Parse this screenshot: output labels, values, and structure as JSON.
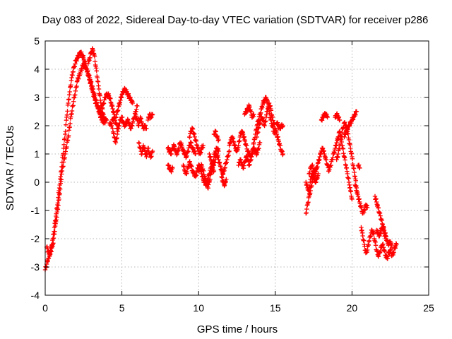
{
  "chart_data": {
    "type": "scatter",
    "title": "Day 083 of 2022, Sidereal Day-to-day VTEC variation (SDTVAR) for receiver p286",
    "xlabel": "GPS time / hours",
    "ylabel": "SDTVAR / TECUs",
    "xlim": [
      0,
      25
    ],
    "ylim": [
      -4,
      5
    ],
    "xticks": [
      0,
      5,
      10,
      15,
      20,
      25
    ],
    "yticks": [
      -4,
      -3,
      -2,
      -1,
      0,
      1,
      2,
      3,
      4,
      5
    ],
    "grid": true,
    "marker": "+",
    "color": "#ff0000",
    "segments": [
      {
        "x": [
          0.0,
          0.1,
          0.2,
          0.3,
          0.4,
          0.5,
          0.6,
          0.7,
          0.8,
          0.9,
          1.0,
          1.1,
          1.2,
          1.3,
          1.4,
          1.5,
          1.6,
          1.7,
          1.8,
          1.9,
          2.0,
          2.1,
          2.2,
          2.3,
          2.4,
          2.5,
          2.6,
          2.7,
          2.8,
          2.9,
          3.0,
          3.1,
          3.2,
          3.3,
          3.4,
          3.5,
          3.6,
          3.7,
          3.8,
          3.9,
          4.0
        ],
        "y": [
          -3.1,
          -2.9,
          -2.7,
          -2.5,
          -2.3,
          -2.0,
          -1.6,
          -1.2,
          -0.8,
          -0.3,
          0.2,
          0.7,
          1.2,
          1.7,
          2.3,
          2.8,
          3.2,
          3.6,
          3.9,
          4.1,
          4.3,
          4.4,
          4.5,
          4.6,
          4.5,
          4.4,
          4.2,
          4.0,
          3.8,
          3.6,
          3.4,
          3.2,
          3.0,
          2.8,
          2.7,
          2.6,
          2.5,
          2.4,
          2.3,
          2.2,
          2.2
        ]
      },
      {
        "x": [
          0.1,
          0.3,
          0.5,
          0.7,
          0.9,
          1.1,
          1.3,
          1.5,
          1.7,
          1.9,
          2.1,
          2.3,
          2.5,
          2.7,
          2.9,
          3.1,
          3.3,
          3.5,
          3.7,
          3.9
        ],
        "y": [
          -2.3,
          -2.6,
          -2.2,
          -1.4,
          -0.6,
          0.4,
          1.0,
          1.6,
          2.4,
          3.0,
          3.6,
          3.9,
          4.2,
          4.0,
          3.7,
          3.3,
          2.9,
          2.5,
          2.2,
          2.1
        ]
      },
      {
        "x": [
          2.8,
          2.9,
          3.0,
          3.1,
          3.2,
          3.3,
          3.4,
          3.5,
          3.6,
          3.7,
          3.8
        ],
        "y": [
          4.2,
          4.4,
          4.6,
          4.7,
          4.5,
          4.1,
          3.7,
          3.3,
          2.9,
          2.6,
          2.4
        ]
      },
      {
        "x": [
          3.7,
          3.8,
          3.9,
          4.0,
          4.1,
          4.2,
          4.3,
          4.4,
          4.5
        ],
        "y": [
          2.6,
          2.8,
          3.0,
          3.1,
          3.1,
          3.0,
          2.8,
          2.6,
          2.4
        ]
      },
      {
        "x": [
          4.2,
          4.3,
          4.4,
          4.5,
          4.6,
          4.7,
          4.8,
          4.9,
          5.0,
          5.1,
          5.2,
          5.3,
          5.4,
          5.5,
          5.6,
          5.7,
          5.8,
          5.9,
          6.0
        ],
        "y": [
          2.1,
          2.0,
          2.2,
          2.3,
          2.1,
          1.9,
          2.0,
          2.2,
          2.3,
          2.1,
          2.0,
          2.1,
          2.2,
          2.0,
          1.9,
          2.1,
          2.3,
          2.5,
          2.7
        ]
      },
      {
        "x": [
          4.6,
          4.7,
          4.8,
          4.9,
          5.0,
          5.1,
          5.2,
          5.3,
          5.4,
          5.5,
          5.6,
          5.7
        ],
        "y": [
          2.3,
          2.5,
          2.7,
          2.9,
          3.1,
          3.2,
          3.3,
          3.2,
          3.1,
          3.0,
          2.9,
          2.8
        ]
      },
      {
        "x": [
          4.4,
          4.5,
          4.6,
          4.7,
          4.8
        ],
        "y": [
          1.9,
          1.6,
          1.4,
          1.7,
          2.0
        ]
      },
      {
        "x": [
          5.9,
          6.0,
          6.1,
          6.2,
          6.3,
          6.4,
          6.5,
          6.6
        ],
        "y": [
          2.4,
          2.2,
          2.0,
          2.3,
          2.1,
          1.9,
          2.0,
          1.9
        ]
      },
      {
        "x": [
          6.1,
          6.2,
          6.3,
          6.4,
          6.5,
          6.6,
          6.7,
          6.8,
          6.9,
          7.0
        ],
        "y": [
          1.4,
          1.2,
          1.0,
          1.3,
          1.1,
          0.9,
          1.2,
          1.0,
          0.9,
          1.1
        ]
      },
      {
        "x": [
          6.7,
          6.8,
          6.9,
          7.0
        ],
        "y": [
          2.2,
          2.4,
          2.3,
          2.4
        ]
      },
      {
        "x": [
          8.0,
          8.1,
          8.2,
          8.3,
          8.4,
          8.5,
          8.6,
          8.7,
          8.8,
          8.9,
          9.0,
          9.1,
          9.2,
          9.3,
          9.4,
          9.5,
          9.6,
          9.7,
          9.8
        ],
        "y": [
          1.2,
          1.1,
          1.0,
          1.2,
          1.3,
          1.1,
          1.0,
          1.2,
          1.4,
          1.3,
          1.1,
          1.0,
          0.9,
          1.1,
          1.3,
          1.4,
          1.2,
          1.1,
          1.0
        ]
      },
      {
        "x": [
          8.0,
          8.1,
          8.2,
          8.3
        ],
        "y": [
          0.6,
          0.5,
          0.4,
          0.5
        ]
      },
      {
        "x": [
          9.0,
          9.1,
          9.2,
          9.3,
          9.4,
          9.5,
          9.6,
          9.7,
          9.8,
          9.9,
          10.0,
          10.1,
          10.2,
          10.3,
          10.4,
          10.5,
          10.6,
          10.7,
          10.8,
          10.9,
          11.0,
          11.1,
          11.2,
          11.3,
          11.4,
          11.5,
          11.6,
          11.7,
          11.8,
          11.9,
          12.0
        ],
        "y": [
          0.6,
          0.4,
          0.3,
          0.5,
          0.7,
          0.6,
          0.4,
          0.3,
          0.2,
          0.4,
          0.6,
          0.5,
          0.3,
          0.1,
          0.0,
          -0.1,
          0.1,
          0.3,
          0.5,
          0.7,
          0.6,
          0.8,
          1.0,
          0.8,
          0.6,
          0.4,
          0.3,
          0.5,
          0.7,
          0.9,
          1.1
        ]
      },
      {
        "x": [
          10.0,
          10.1,
          10.2,
          10.3,
          10.4,
          10.5,
          10.6,
          10.7,
          10.8,
          10.9,
          11.0
        ],
        "y": [
          0.4,
          0.5,
          0.6,
          0.4,
          0.2,
          0.0,
          -0.2,
          0.0,
          0.3,
          0.5,
          0.4
        ]
      },
      {
        "x": [
          9.4,
          9.5,
          9.6,
          9.7,
          9.8,
          9.9,
          10.0,
          10.1,
          10.2,
          10.3
        ],
        "y": [
          1.6,
          1.8,
          1.9,
          1.7,
          1.5,
          1.3,
          1.1,
          1.0,
          1.2,
          1.3
        ]
      },
      {
        "x": [
          10.7,
          10.8,
          10.9,
          11.0,
          11.1,
          11.2,
          11.3
        ],
        "y": [
          1.0,
          0.8,
          0.6,
          0.9,
          1.1,
          1.2,
          1.1
        ]
      },
      {
        "x": [
          11.0,
          11.1,
          11.2,
          11.3
        ],
        "y": [
          1.7,
          1.8,
          1.6,
          1.5
        ]
      },
      {
        "x": [
          11.5,
          11.6,
          11.7,
          11.8
        ],
        "y": [
          0.2,
          0.0,
          -0.1,
          0.1
        ]
      },
      {
        "x": [
          12.0,
          12.1,
          12.2,
          12.3,
          12.4,
          12.5,
          12.6,
          12.7,
          12.8,
          12.9,
          13.0,
          13.1,
          13.2,
          13.3,
          13.4,
          13.5,
          13.6,
          13.7,
          13.8,
          13.9,
          14.0,
          14.1,
          14.2,
          14.3,
          14.4,
          14.5,
          14.6,
          14.7,
          14.8,
          14.9,
          15.0
        ],
        "y": [
          1.3,
          1.5,
          1.6,
          1.4,
          1.2,
          1.1,
          1.3,
          1.6,
          1.8,
          1.7,
          1.5,
          1.3,
          1.1,
          1.0,
          0.9,
          1.1,
          1.4,
          1.7,
          2.0,
          2.2,
          2.4,
          2.6,
          2.8,
          2.9,
          3.0,
          2.8,
          2.5,
          2.2,
          2.0,
          1.8,
          1.7
        ]
      },
      {
        "x": [
          12.6,
          12.7,
          12.8,
          12.9,
          13.0,
          13.1,
          13.2,
          13.3,
          13.4,
          13.5,
          13.6,
          13.7,
          13.8,
          13.9,
          14.0
        ],
        "y": [
          0.6,
          0.8,
          0.7,
          0.5,
          0.7,
          0.9,
          0.8,
          0.6,
          0.8,
          1.0,
          1.2,
          1.1,
          1.0,
          1.2,
          1.4
        ]
      },
      {
        "x": [
          13.8,
          13.9,
          14.0,
          14.1,
          14.2,
          14.3,
          14.4,
          14.5,
          14.6,
          14.7,
          14.8,
          14.9,
          15.0,
          15.1,
          15.2,
          15.3,
          15.4,
          15.5
        ],
        "y": [
          1.6,
          1.9,
          2.1,
          2.3,
          2.2,
          2.0,
          2.3,
          2.6,
          2.8,
          2.6,
          2.3,
          2.1,
          1.9,
          1.7,
          1.5,
          1.3,
          1.1,
          1.0
        ]
      },
      {
        "x": [
          13.0,
          13.1,
          13.2,
          13.3,
          13.4,
          13.5,
          13.6
        ],
        "y": [
          2.4,
          2.5,
          2.6,
          2.7,
          2.5,
          2.3,
          2.4
        ]
      },
      {
        "x": [
          15.1,
          15.2,
          15.3,
          15.4,
          15.5
        ],
        "y": [
          2.1,
          2.0,
          1.9,
          2.0,
          2.0
        ]
      },
      {
        "x": [
          17.0,
          17.1,
          17.2,
          17.3,
          17.4,
          17.5,
          17.6,
          17.7,
          17.8,
          17.9,
          18.0,
          18.1,
          18.2,
          18.3,
          18.4,
          18.5,
          18.6,
          18.7,
          18.8,
          18.9,
          19.0,
          19.1,
          19.2,
          19.3,
          19.4,
          19.5,
          19.6,
          19.7,
          19.8,
          19.9,
          20.0
        ],
        "y": [
          0.0,
          -0.2,
          -0.3,
          0.1,
          0.3,
          0.2,
          0.4,
          0.5,
          0.7,
          0.9,
          1.1,
          1.2,
          1.0,
          0.8,
          0.6,
          0.4,
          0.6,
          0.8,
          1.0,
          1.2,
          1.4,
          1.6,
          1.8,
          1.5,
          1.2,
          0.9,
          0.6,
          0.3,
          0.0,
          -0.3,
          -0.6
        ]
      },
      {
        "x": [
          17.0,
          17.1,
          17.2,
          17.3,
          17.4,
          17.5,
          17.6,
          17.7,
          17.8
        ],
        "y": [
          -1.1,
          -0.8,
          -0.5,
          -0.3,
          0.0,
          0.2,
          0.0,
          0.1,
          0.3
        ]
      },
      {
        "x": [
          17.2,
          17.3,
          17.4,
          17.5,
          17.6,
          17.7
        ],
        "y": [
          0.3,
          0.5,
          0.6,
          0.4,
          0.3,
          0.5
        ]
      },
      {
        "x": [
          18.0,
          18.1,
          18.2,
          18.3,
          18.4
        ],
        "y": [
          2.2,
          2.3,
          2.4,
          2.4,
          2.3
        ]
      },
      {
        "x": [
          18.9,
          19.0,
          19.1,
          19.2
        ],
        "y": [
          2.3,
          2.4,
          2.3,
          2.2
        ]
      },
      {
        "x": [
          19.0,
          19.1,
          19.2,
          19.3,
          19.4,
          19.5,
          19.6,
          19.7,
          19.8,
          19.9,
          20.0,
          20.1,
          20.2,
          20.3
        ],
        "y": [
          0.8,
          1.0,
          1.3,
          1.6,
          1.9,
          2.1,
          2.0,
          1.8,
          1.5,
          1.2,
          0.9,
          0.5,
          0.2,
          -0.2
        ]
      },
      {
        "x": [
          19.5,
          19.6,
          19.7,
          19.8,
          19.9,
          20.0,
          20.1,
          20.2,
          20.3
        ],
        "y": [
          1.6,
          1.8,
          1.9,
          2.0,
          2.1,
          2.2,
          2.3,
          2.4,
          2.5
        ]
      },
      {
        "x": [
          20.2,
          20.3,
          20.4,
          20.5,
          20.6,
          20.7,
          20.8,
          20.9,
          21.0
        ],
        "y": [
          -0.1,
          -0.3,
          -0.5,
          -0.7,
          -0.9,
          -1.1,
          -1.0,
          -0.8,
          -0.9
        ]
      },
      {
        "x": [
          20.4,
          20.5
        ],
        "y": [
          0.6,
          0.5
        ]
      },
      {
        "x": [
          20.6,
          20.7,
          20.8,
          20.9,
          21.0,
          21.1,
          21.2,
          21.3,
          21.4,
          21.5,
          21.6,
          21.7,
          21.8,
          21.9,
          22.0,
          22.1,
          22.2,
          22.3,
          22.4,
          22.5,
          22.6,
          22.7,
          22.8,
          22.9
        ],
        "y": [
          -1.6,
          -1.9,
          -2.2,
          -2.5,
          -2.4,
          -2.1,
          -1.9,
          -1.7,
          -1.8,
          -2.1,
          -2.4,
          -2.6,
          -2.5,
          -2.3,
          -2.2,
          -2.4,
          -2.6,
          -2.7,
          -2.5,
          -2.4,
          -2.6,
          -2.5,
          -2.3,
          -2.2
        ]
      },
      {
        "x": [
          21.5,
          21.6,
          21.7,
          21.8,
          21.9,
          22.0,
          22.1,
          22.2,
          22.3,
          22.4,
          22.5,
          22.6
        ],
        "y": [
          -0.5,
          -0.7,
          -0.9,
          -1.1,
          -1.3,
          -1.5,
          -1.7,
          -1.9,
          -2.1,
          -2.2,
          -2.1,
          -2.3
        ]
      },
      {
        "x": [
          21.6,
          21.7,
          21.8,
          21.9,
          22.0,
          22.1,
          22.2
        ],
        "y": [
          -1.7,
          -1.8,
          -1.9,
          -1.7,
          -1.6,
          -1.8,
          -2.0
        ]
      }
    ]
  }
}
